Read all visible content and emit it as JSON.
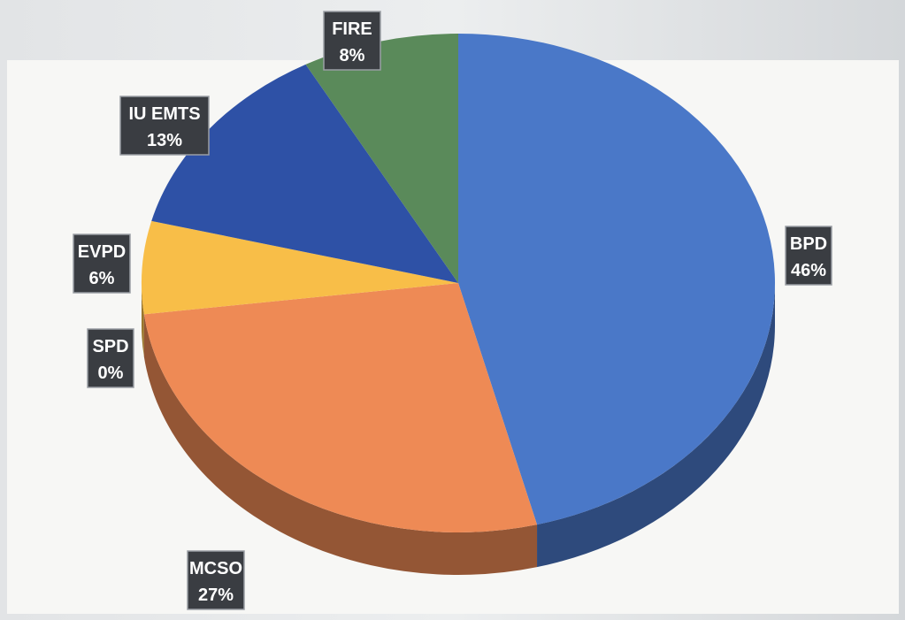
{
  "chart_data": {
    "type": "pie",
    "style": "3d",
    "slices": [
      {
        "label": "BPD",
        "percent_label": "46%",
        "value": 46,
        "color": "#4a78c8"
      },
      {
        "label": "MCSO",
        "percent_label": "27%",
        "value": 27,
        "color": "#ee8a55"
      },
      {
        "label": "SPD",
        "percent_label": "0%",
        "value": 0,
        "color": "#9ea4aa"
      },
      {
        "label": "EVPD",
        "percent_label": "6%",
        "value": 6,
        "color": "#f8be48"
      },
      {
        "label": "IU EMTS",
        "percent_label": "13%",
        "value": 13,
        "color": "#2e51a6"
      },
      {
        "label": "FIRE",
        "percent_label": "8%",
        "value": 8,
        "color": "#5a8a5a"
      }
    ]
  }
}
